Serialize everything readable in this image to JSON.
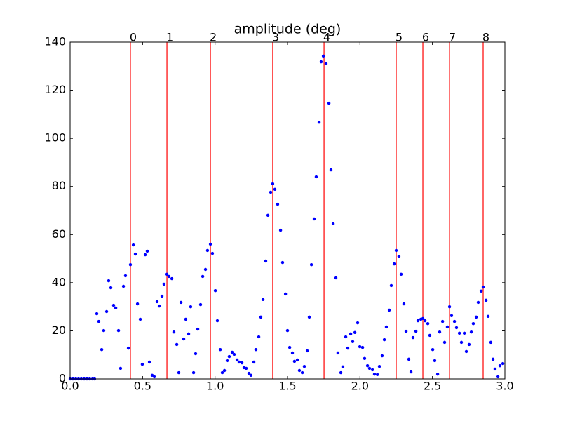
{
  "chart_data": {
    "type": "scatter",
    "title": "amplitude (deg)",
    "x": [
      0,
      0.019,
      0.039,
      0.058,
      0.077,
      0.097,
      0.116,
      0.135,
      0.155,
      0.169,
      0.184,
      0.198,
      0.218,
      0.232,
      0.252,
      0.266,
      0.281,
      0.3,
      0.315,
      0.334,
      0.348,
      0.368,
      0.382,
      0.402,
      0.416,
      0.436,
      0.45,
      0.465,
      0.484,
      0.498,
      0.518,
      0.532,
      0.547,
      0.566,
      0.581,
      0.6,
      0.615,
      0.634,
      0.648,
      0.668,
      0.682,
      0.702,
      0.716,
      0.736,
      0.75,
      0.765,
      0.784,
      0.798,
      0.818,
      0.832,
      0.852,
      0.866,
      0.881,
      0.9,
      0.915,
      0.934,
      0.948,
      0.968,
      0.982,
      1.002,
      1.016,
      1.036,
      1.05,
      1.065,
      1.084,
      1.098,
      1.118,
      1.132,
      1.152,
      1.166,
      1.186,
      1.2,
      1.215,
      1.234,
      1.248,
      1.268,
      1.282,
      1.302,
      1.316,
      1.331,
      1.35,
      1.365,
      1.384,
      1.398,
      1.413,
      1.432,
      1.452,
      1.466,
      1.486,
      1.5,
      1.515,
      1.534,
      1.548,
      1.568,
      1.582,
      1.602,
      1.616,
      1.636,
      1.65,
      1.665,
      1.684,
      1.698,
      1.718,
      1.732,
      1.747,
      1.766,
      1.786,
      1.8,
      1.815,
      1.834,
      1.848,
      1.868,
      1.882,
      1.902,
      1.916,
      1.936,
      1.95,
      1.965,
      1.984,
      1.999,
      2.018,
      2.032,
      2.052,
      2.066,
      2.086,
      2.1,
      2.12,
      2.134,
      2.153,
      2.168,
      2.182,
      2.202,
      2.216,
      2.236,
      2.25,
      2.269,
      2.284,
      2.303,
      2.318,
      2.337,
      2.352,
      2.366,
      2.386,
      2.4,
      2.42,
      2.434,
      2.449,
      2.468,
      2.482,
      2.502,
      2.516,
      2.536,
      2.55,
      2.57,
      2.584,
      2.603,
      2.618,
      2.632,
      2.652,
      2.666,
      2.686,
      2.7,
      2.72,
      2.734,
      2.753,
      2.768,
      2.782,
      2.802,
      2.816,
      2.836,
      2.85,
      2.87,
      2.884,
      2.903,
      2.918,
      2.932,
      2.952,
      2.966,
      2.986
    ],
    "values": [
      0,
      0,
      0,
      0,
      0,
      0,
      0,
      0,
      0,
      0,
      27.1,
      23.9,
      12.2,
      20.1,
      28,
      40.8,
      37.9,
      30.6,
      29.5,
      20.1,
      4.4,
      38.5,
      42.9,
      12.8,
      47.5,
      55.7,
      51.9,
      31.2,
      24.8,
      6.1,
      51.6,
      53.1,
      7,
      1.5,
      0.9,
      32.1,
      30.3,
      34.4,
      39.4,
      43.5,
      42.6,
      41.7,
      19.5,
      14.3,
      2.6,
      31.8,
      16.6,
      24.8,
      18.7,
      30,
      2.6,
      10.5,
      20.7,
      30.9,
      42.6,
      45.5,
      53.4,
      56,
      52.2,
      36.7,
      24.2,
      12.2,
      2.6,
      3.5,
      7.6,
      9.3,
      11.1,
      10.2,
      7.9,
      7,
      6.7,
      4.7,
      4.4,
      2.3,
      1.5,
      7,
      12.2,
      17.5,
      25.7,
      33,
      49,
      68,
      77.6,
      81.1,
      78.8,
      72.6,
      61.8,
      48.4,
      35.3,
      20.1,
      13.1,
      10.8,
      7.3,
      7.9,
      3.5,
      2.6,
      5.2,
      11.7,
      25.7,
      47.5,
      66.5,
      84,
      106.7,
      131.8,
      134.2,
      131,
      114.6,
      86.9,
      64.5,
      42,
      10.8,
      2.6,
      5,
      17.5,
      12.8,
      18.7,
      15.5,
      19.3,
      23.3,
      13.4,
      13.1,
      8.5,
      5.5,
      4.4,
      3.8,
      2,
      1.8,
      5.2,
      9.6,
      16.3,
      21.6,
      28.6,
      38.8,
      47.8,
      53.4,
      51,
      43.5,
      31.2,
      19.8,
      8.2,
      2.9,
      17.2,
      19.8,
      24.2,
      24.8,
      25.1,
      24.2,
      23,
      18.1,
      12.2,
      7.6,
      2,
      19.5,
      23.9,
      15.2,
      21.6,
      30,
      26.3,
      23.9,
      21.3,
      19,
      15.2,
      19,
      11.4,
      14.3,
      19.5,
      23,
      25.7,
      31.8,
      36.5,
      38.2,
      32.7,
      26,
      15.2,
      8.2,
      4.1,
      0.9,
      5.5,
      6.4
    ],
    "color": "#0000ff",
    "vlines": [
      {
        "x": 0.416,
        "label": "0"
      },
      {
        "x": 0.668,
        "label": "1"
      },
      {
        "x": 0.968,
        "label": "2"
      },
      {
        "x": 1.398,
        "label": "3"
      },
      {
        "x": 1.752,
        "label": "4"
      },
      {
        "x": 2.25,
        "label": "5"
      },
      {
        "x": 2.434,
        "label": "6"
      },
      {
        "x": 2.618,
        "label": "7"
      },
      {
        "x": 2.85,
        "label": "8"
      }
    ],
    "vline_color": "#ff0000",
    "xlim": [
      0,
      3
    ],
    "ylim": [
      0,
      140
    ],
    "xticks": [
      {
        "value": 0,
        "label": "0.0"
      },
      0.5,
      {
        "value": 1,
        "label": "1.0"
      },
      1.5,
      {
        "value": 2,
        "label": "2.0"
      },
      2.5,
      {
        "value": 3,
        "label": "3.0"
      }
    ],
    "yticks": [
      0,
      20,
      40,
      60,
      80,
      100,
      120,
      140
    ]
  }
}
